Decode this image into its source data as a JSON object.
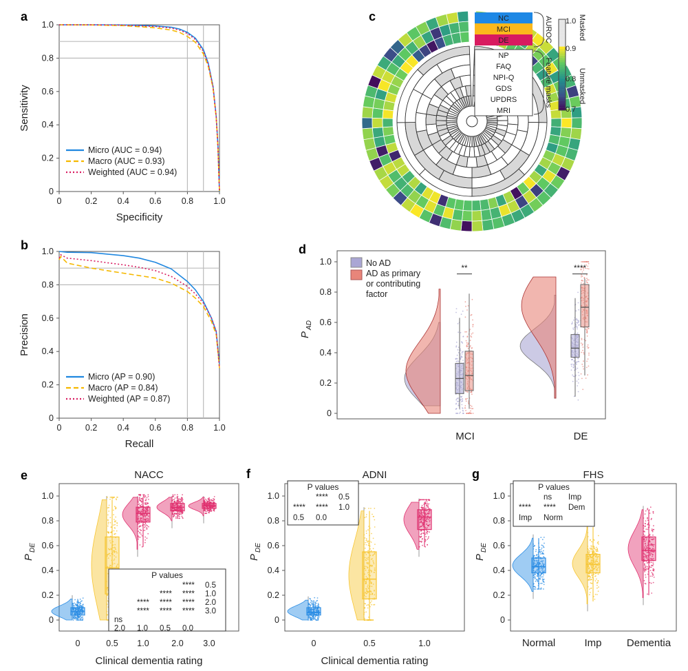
{
  "colors": {
    "micro": "#1f87e0",
    "macro": "#f5b800",
    "weighted": "#d81b60",
    "noad": "#aaa6d4",
    "ad": "#e8857a",
    "nc": "#1e88e5",
    "mci": "#fbb81c",
    "de": "#d81b60",
    "cdr0": "#2b8de4",
    "cdr05": "#f7c531",
    "cdr1": "#e0306f"
  },
  "panels": {
    "a": "a",
    "b": "b",
    "c": "c",
    "d": "d",
    "e": "e",
    "f": "f",
    "g": "g"
  },
  "chart_data": [
    {
      "id": "a",
      "type": "line",
      "xlabel": "Specificity",
      "ylabel": "Sensitivity",
      "xlim": [
        0,
        1
      ],
      "ylim": [
        0,
        1
      ],
      "xticks": [
        "0",
        "0.2",
        "0.4",
        "0.6",
        "0.8",
        "1.0"
      ],
      "yticks": [
        "0",
        "0.2",
        "0.4",
        "0.6",
        "0.8",
        "1.0"
      ],
      "reference_lines": {
        "x": [
          0.8,
          0.9
        ],
        "y": [
          0.8,
          0.9
        ]
      },
      "legend": "bottom-left",
      "series": [
        {
          "name": "Micro (AUC = 0.94)",
          "style": "solid",
          "x": [
            0,
            0.2,
            0.4,
            0.6,
            0.7,
            0.75,
            0.8,
            0.85,
            0.9,
            0.93,
            0.96,
            0.98,
            0.99,
            1.0
          ],
          "y": [
            1.0,
            1.0,
            0.999,
            0.993,
            0.985,
            0.975,
            0.955,
            0.92,
            0.85,
            0.77,
            0.63,
            0.45,
            0.28,
            0.0
          ]
        },
        {
          "name": "Macro (AUC = 0.93)",
          "style": "dashed",
          "x": [
            0,
            0.2,
            0.4,
            0.6,
            0.7,
            0.75,
            0.8,
            0.85,
            0.9,
            0.93,
            0.96,
            0.98,
            0.99,
            1.0
          ],
          "y": [
            1.0,
            0.999,
            0.995,
            0.982,
            0.968,
            0.955,
            0.93,
            0.895,
            0.825,
            0.75,
            0.62,
            0.44,
            0.27,
            0.0
          ]
        },
        {
          "name": "Weighted (AUC = 0.94)",
          "style": "dotted",
          "x": [
            0,
            0.2,
            0.4,
            0.6,
            0.7,
            0.75,
            0.8,
            0.85,
            0.9,
            0.93,
            0.96,
            0.98,
            0.99,
            1.0
          ],
          "y": [
            1.0,
            1.0,
            0.998,
            0.99,
            0.98,
            0.968,
            0.948,
            0.912,
            0.84,
            0.765,
            0.625,
            0.445,
            0.275,
            0.0
          ]
        }
      ]
    },
    {
      "id": "b",
      "type": "line",
      "xlabel": "Recall",
      "ylabel": "Precision",
      "xlim": [
        0,
        1
      ],
      "ylim": [
        0,
        1
      ],
      "xticks": [
        "0",
        "0.2",
        "0.4",
        "0.6",
        "0.8",
        "1.0"
      ],
      "yticks": [
        "0",
        "0.2",
        "0.4",
        "0.6",
        "0.8",
        "1.0"
      ],
      "reference_lines": {
        "x": [
          0.8,
          0.9
        ],
        "y": [
          0.8,
          0.9
        ]
      },
      "legend": "bottom-left",
      "series": [
        {
          "name": "Micro (AP = 0.90)",
          "style": "solid",
          "x": [
            0,
            0.05,
            0.2,
            0.4,
            0.5,
            0.6,
            0.7,
            0.8,
            0.85,
            0.9,
            0.95,
            0.98,
            1.0
          ],
          "y": [
            1.0,
            0.995,
            0.993,
            0.975,
            0.96,
            0.935,
            0.895,
            0.82,
            0.77,
            0.7,
            0.6,
            0.52,
            0.32
          ]
        },
        {
          "name": "Macro (AP = 0.84)",
          "style": "dashed",
          "x": [
            0,
            0.01,
            0.05,
            0.2,
            0.4,
            0.5,
            0.6,
            0.7,
            0.8,
            0.85,
            0.9,
            0.95,
            0.98,
            1.0
          ],
          "y": [
            0.95,
            0.97,
            0.93,
            0.9,
            0.87,
            0.855,
            0.84,
            0.81,
            0.76,
            0.72,
            0.67,
            0.58,
            0.5,
            0.3
          ]
        },
        {
          "name": "Weighted (AP = 0.87)",
          "style": "dotted",
          "x": [
            0,
            0.01,
            0.05,
            0.2,
            0.4,
            0.5,
            0.6,
            0.7,
            0.8,
            0.85,
            0.9,
            0.95,
            0.98,
            1.0
          ],
          "y": [
            0.96,
            0.98,
            0.96,
            0.945,
            0.92,
            0.905,
            0.885,
            0.85,
            0.79,
            0.745,
            0.69,
            0.6,
            0.52,
            0.3
          ]
        }
      ]
    },
    {
      "id": "c",
      "type": "heatmap",
      "rows_auroc": [
        "NC",
        "MCI",
        "DE"
      ],
      "rows_masks": [
        "NP",
        "FAQ",
        "NPI-Q",
        "GDS",
        "UPDRS",
        "MRI"
      ],
      "group_labels": [
        "AUROC",
        "Feature masks"
      ],
      "colorbar": {
        "range": [
          0.7,
          1.0
        ],
        "ticks": [
          "1.0",
          "0.9",
          "0.8",
          "0.7"
        ],
        "labels": [
          "Masked",
          "Unmasked"
        ]
      }
    },
    {
      "id": "d",
      "type": "violin",
      "ylabel": "P",
      "ylabel_sub": "AD",
      "ylim": [
        0,
        1
      ],
      "yticks": [
        "0",
        "0.2",
        "0.4",
        "0.6",
        "0.8",
        "1.0"
      ],
      "categories": [
        "MCI",
        "DE"
      ],
      "legend": "top-left",
      "legend_entries": [
        "No AD",
        "AD as primary",
        "or contributing",
        "factor"
      ],
      "significance": [
        "**",
        "****"
      ],
      "series": [
        {
          "name": "No AD",
          "medians": [
            0.23,
            0.43
          ],
          "q1": [
            0.13,
            0.37
          ],
          "q3": [
            0.33,
            0.52
          ],
          "whisker_low": [
            0.03,
            0.11
          ],
          "whisker_high": [
            0.63,
            0.76
          ]
        },
        {
          "name": "AD as primary or contributing factor",
          "medians": [
            0.25,
            0.7
          ],
          "q1": [
            0.15,
            0.57
          ],
          "q3": [
            0.41,
            0.85
          ],
          "whisker_low": [
            0.03,
            0.25
          ],
          "whisker_high": [
            0.79,
            0.89
          ]
        }
      ]
    },
    {
      "id": "e",
      "type": "violin",
      "title": "NACC",
      "xlabel": "Clinical dementia rating",
      "ylabel": "P",
      "ylabel_sub": "DE",
      "ylim": [
        0,
        1
      ],
      "yticks": [
        "0",
        "0.2",
        "0.4",
        "0.6",
        "0.8",
        "1.0"
      ],
      "categories": [
        "0",
        "0.5",
        "1.0",
        "2.0",
        "3.0"
      ],
      "medians": [
        0.07,
        0.42,
        0.86,
        0.91,
        0.92
      ],
      "q1": [
        0.04,
        0.21,
        0.79,
        0.88,
        0.9
      ],
      "q3": [
        0.1,
        0.67,
        0.91,
        0.94,
        0.94
      ],
      "whisker_low": [
        0.0,
        0.0,
        0.59,
        0.82,
        0.86
      ],
      "whisker_high": [
        0.17,
        0.97,
        0.99,
        0.99,
        0.99
      ],
      "pvalue_title": "P values",
      "pvalue_rows": [
        [
          "",
          "",
          "",
          "****",
          "0.5"
        ],
        [
          "",
          "",
          "****",
          "****",
          "1.0"
        ],
        [
          "",
          "****",
          "****",
          "****",
          "2.0"
        ],
        [
          "",
          "****",
          "****",
          "****",
          "3.0"
        ],
        [
          "ns",
          "",
          "",
          "",
          ""
        ],
        [
          "2.0",
          "1.0",
          "0.5",
          "0.0",
          ""
        ]
      ]
    },
    {
      "id": "f",
      "type": "violin",
      "title": "ADNI",
      "xlabel": "Clinical dementia rating",
      "ylabel": "P",
      "ylabel_sub": "DE",
      "ylim": [
        0,
        1
      ],
      "yticks": [
        "0",
        "0.2",
        "0.4",
        "0.6",
        "0.8",
        "1.0"
      ],
      "categories": [
        "0",
        "0.5",
        "1.0"
      ],
      "medians": [
        0.06,
        0.33,
        0.83
      ],
      "q1": [
        0.04,
        0.17,
        0.73
      ],
      "q3": [
        0.1,
        0.55,
        0.89
      ],
      "whisker_low": [
        0.0,
        0.0,
        0.59
      ],
      "whisker_high": [
        0.16,
        0.88,
        0.95
      ],
      "pvalue_title": "P values",
      "pvalue_rows": [
        [
          "",
          "****",
          "0.5"
        ],
        [
          "****",
          "****",
          "1.0"
        ],
        [
          "0.5",
          "0.0",
          ""
        ]
      ]
    },
    {
      "id": "g",
      "type": "violin",
      "title": "FHS",
      "ylabel": "P",
      "ylabel_sub": "DE",
      "ylim": [
        0,
        1
      ],
      "yticks": [
        "0",
        "0.2",
        "0.4",
        "0.6",
        "0.8",
        "1.0"
      ],
      "categories": [
        "Normal",
        "Imp",
        "Dementia"
      ],
      "medians": [
        0.43,
        0.45,
        0.56
      ],
      "q1": [
        0.38,
        0.38,
        0.48
      ],
      "q3": [
        0.5,
        0.53,
        0.67
      ],
      "whisker_low": [
        0.25,
        0.15,
        0.2
      ],
      "whisker_high": [
        0.66,
        0.75,
        0.89
      ],
      "pvalue_title": "P values",
      "pvalue_rows": [
        [
          "",
          "ns",
          "Imp"
        ],
        [
          "****",
          "****",
          "Dem"
        ],
        [
          "Imp",
          "Norm",
          ""
        ]
      ]
    }
  ]
}
